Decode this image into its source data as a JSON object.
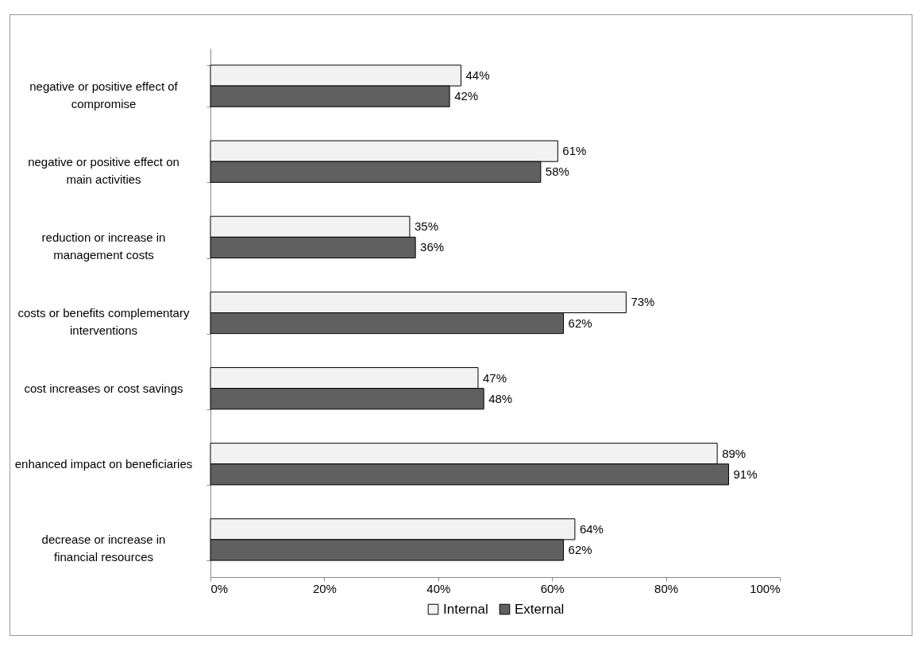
{
  "chart_data": {
    "type": "bar",
    "orientation": "horizontal",
    "categories": [
      "negative or positive effect of compromise",
      "negative or positive effect on main activities",
      "reduction or increase in management costs",
      "costs or benefits complementary interventions",
      "cost increases or cost savings",
      "enhanced impact on beneficiaries",
      "decrease or increase in financial resources"
    ],
    "series": [
      {
        "name": "Internal",
        "color": "#f2f2f2",
        "values": [
          44,
          61,
          35,
          73,
          47,
          89,
          64
        ],
        "value_labels": [
          "44%",
          "61%",
          "35%",
          "73%",
          "47%",
          "89%",
          "64%"
        ]
      },
      {
        "name": "External",
        "color": "#606060",
        "values": [
          42,
          58,
          36,
          62,
          48,
          91,
          62
        ],
        "value_labels": [
          "42%",
          "58%",
          "36%",
          "62%",
          "48%",
          "91%",
          "62%"
        ]
      }
    ],
    "xlim": [
      0,
      100
    ],
    "xticks": [
      {
        "value": 0,
        "label": "0%"
      },
      {
        "value": 20,
        "label": "20%"
      },
      {
        "value": 40,
        "label": "40%"
      },
      {
        "value": 60,
        "label": "60%"
      },
      {
        "value": 80,
        "label": "80%"
      },
      {
        "value": 100,
        "label": "100%"
      }
    ],
    "legend": "bottom"
  }
}
